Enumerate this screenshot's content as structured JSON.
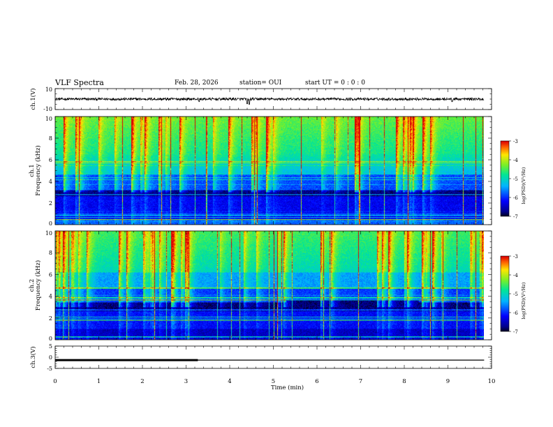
{
  "header": {
    "title": "VLF Spectra",
    "date": "Feb. 28, 2026",
    "station": "station= OUI",
    "start": "start  UT =   0 : 0  : 0"
  },
  "chart_data": [
    {
      "type": "line",
      "name": "ch1-waveform",
      "ylabel": "ch.1(V)",
      "ylim": [
        -10,
        10
      ],
      "ytick_labels": [
        "10",
        "-10"
      ],
      "x": [
        0,
        9.83
      ],
      "baseline": 0,
      "noise_amplitude": 1.2,
      "spikes": [
        {
          "t": 3.3,
          "value": -2.5
        },
        {
          "t": 4.4,
          "value": -4.5
        },
        {
          "t": 4.45,
          "value": -5.0
        },
        {
          "t": 9.1,
          "value": -2.5
        }
      ]
    },
    {
      "type": "heatmap",
      "name": "ch1-spectrogram",
      "title": "ch.1",
      "ylabel": "Frequency (kHz)",
      "ylim": [
        0,
        10
      ],
      "ytick_labels": [
        "0",
        "2",
        "4",
        "6",
        "8",
        "10"
      ],
      "xlim": [
        0,
        10
      ],
      "data_end_min": 9.83,
      "colorbar": {
        "label": "log(PSD)(V²/Hz)",
        "range": [
          -7,
          -3
        ],
        "tick_labels": [
          "-3",
          "-4",
          "-5",
          "-6",
          "-7"
        ]
      },
      "description_levels": {
        "low_band_kHz": [
          0,
          2.8
        ],
        "noise_floor_log": -6.3,
        "high_band_log": -4.2
      }
    },
    {
      "type": "heatmap",
      "name": "ch2-spectrogram",
      "title": "ch.2",
      "ylabel": "Frequency (kHz)",
      "ylim": [
        0,
        10
      ],
      "ytick_labels": [
        "0",
        "2",
        "4",
        "6",
        "8",
        "10"
      ],
      "xlim": [
        0,
        10
      ],
      "data_end_min": 9.83,
      "colorbar": {
        "label": "log(PSD)(V²/Hz)",
        "range": [
          -7,
          -3
        ],
        "tick_labels": [
          "-3",
          "-4",
          "-5",
          "-6",
          "-7"
        ]
      }
    },
    {
      "type": "line",
      "name": "ch3-waveform",
      "ylabel": "ch.3(V)",
      "ylim": [
        -5,
        5
      ],
      "ytick_labels": [
        "5",
        "0",
        "-5"
      ],
      "x": [
        0,
        9.83
      ],
      "level": -1.3,
      "thick_until_min": 3.27
    }
  ],
  "xaxis": {
    "label": "Time (min)",
    "range": [
      0,
      10
    ],
    "tick_labels": [
      "0",
      "1",
      "2",
      "3",
      "4",
      "5",
      "6",
      "7",
      "8",
      "9",
      "10"
    ]
  }
}
